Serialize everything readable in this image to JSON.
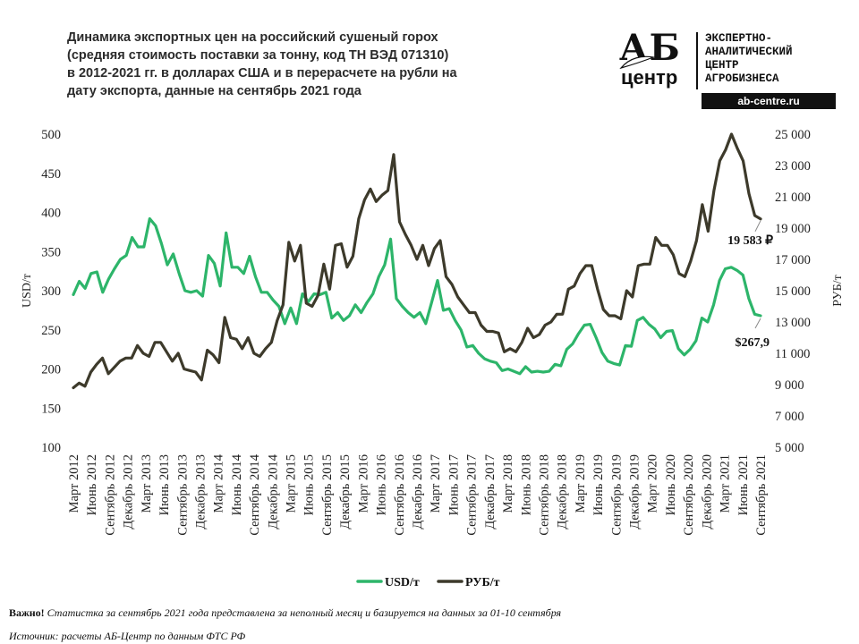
{
  "title_lines": [
    "Динамика экспортных цен на российский сушеный горох",
    "(средняя стоимость поставки за тонну, код ТН ВЭД 071310)",
    "в 2012-2021 гг. в долларах США и в перерасчете на рубли на",
    "дату экспорта, данные на сентябрь 2021 года"
  ],
  "logo": {
    "mark_top": "АБ",
    "mark_bottom": "центр",
    "text_lines": [
      "ЭКСПЕРТНО-",
      "АНАЛИТИЧЕСКИЙ",
      "ЦЕНТР",
      "АГРОБИЗНЕСА"
    ],
    "url": "ab-centre.ru"
  },
  "note": {
    "label": "Важно!",
    "text": "Статистка за сентябрь 2021 года представлена за неполный месяц и базируется на данных за 01-10 сентября"
  },
  "source": {
    "label": "Источник:",
    "text": "расчеты АБ-Центр по данным ФТС РФ"
  },
  "chart_data": {
    "type": "line",
    "y_left_label": "USD/т",
    "y_right_label": "РУБ/т",
    "y_left_lim": [
      100,
      500
    ],
    "y_right_lim": [
      5000,
      25000
    ],
    "y_left_ticks": [
      "100",
      "150",
      "200",
      "250",
      "300",
      "350",
      "400",
      "450",
      "500"
    ],
    "y_right_ticks": [
      "5 000",
      "7 000",
      "9 000",
      "11 000",
      "13 000",
      "15 000",
      "17 000",
      "19 000",
      "21 000",
      "23 000",
      "25 000"
    ],
    "x_ticks": [
      "Март 2012",
      "Июнь 2012",
      "Сентябрь 2012",
      "Декабрь 2012",
      "Март 2013",
      "Июнь 2013",
      "Сентябрь 2013",
      "Декабрь 2013",
      "Март 2014",
      "Июнь 2014",
      "Сентябрь 2014",
      "Декабрь 2014",
      "Март 2015",
      "Июнь 2015",
      "Сентябрь 2015",
      "Декабрь 2015",
      "Март 2016",
      "Июнь 2016",
      "Сентябрь 2016",
      "Декабрь 2016",
      "Март 2017",
      "Июнь 2017",
      "Сентябрь 2017",
      "Декабрь 2017",
      "Март 2018",
      "Июнь 2018",
      "Сентябрь 2018",
      "Декабрь 2018",
      "Март 2019",
      "Июнь 2019",
      "Сентябрь 2019",
      "Декабрь 2019",
      "Март 2020",
      "Июнь 2020",
      "Сентябрь 2020",
      "Декабрь 2020",
      "Март 2021",
      "Июнь 2021",
      "Сентябрь 2021"
    ],
    "series": [
      {
        "name": "USD/т",
        "axis": "left",
        "color": "#2db56a",
        "values": [
          295,
          312,
          303,
          322,
          324,
          298,
          315,
          328,
          340,
          345,
          368,
          356,
          356,
          392,
          383,
          360,
          333,
          347,
          322,
          300,
          298,
          300,
          293,
          345,
          335,
          306,
          374,
          330,
          330,
          322,
          344,
          318,
          298,
          298,
          288,
          280,
          258,
          278,
          258,
          296,
          286,
          296,
          295,
          298,
          265,
          272,
          262,
          268,
          282,
          272,
          285,
          296,
          318,
          333,
          366,
          290,
          280,
          272,
          266,
          272,
          258,
          285,
          313,
          275,
          277,
          262,
          250,
          228,
          230,
          220,
          213,
          210,
          208,
          198,
          200,
          197,
          194,
          203,
          196,
          197,
          196,
          197,
          206,
          204,
          225,
          232,
          245,
          256,
          257,
          240,
          221,
          210,
          207,
          205,
          230,
          229,
          262,
          266,
          257,
          251,
          240,
          248,
          249,
          226,
          218,
          225,
          236,
          265,
          260,
          282,
          313,
          328,
          330,
          326,
          320,
          290,
          270,
          268
        ]
      },
      {
        "name": "РУБ/т",
        "axis": "right",
        "color": "#3d3a2b",
        "values": [
          8800,
          9100,
          8900,
          9800,
          10300,
          10700,
          9700,
          10100,
          10500,
          10700,
          10700,
          11500,
          11000,
          10800,
          11700,
          11700,
          11100,
          10500,
          11000,
          10000,
          9900,
          9800,
          9300,
          11200,
          10900,
          10400,
          13300,
          12000,
          11900,
          11300,
          12000,
          11000,
          10800,
          11300,
          11700,
          13100,
          14100,
          18100,
          16900,
          17900,
          14200,
          14000,
          14700,
          16700,
          15100,
          17900,
          18000,
          16500,
          17200,
          19600,
          20800,
          21500,
          20700,
          21100,
          21400,
          23700,
          19400,
          18600,
          17900,
          17000,
          17900,
          16600,
          17700,
          18200,
          15900,
          15400,
          14600,
          14100,
          13600,
          13600,
          12800,
          12400,
          12400,
          12300,
          11100,
          11300,
          11100,
          11700,
          12600,
          12000,
          12200,
          12800,
          13000,
          13500,
          13500,
          15100,
          15300,
          16100,
          16600,
          16600,
          15100,
          13800,
          13400,
          13400,
          13200,
          15000,
          14600,
          16600,
          16700,
          16700,
          18400,
          17900,
          17900,
          17300,
          16100,
          15900,
          16900,
          18200,
          20500,
          18800,
          21400,
          23300,
          24000,
          25000,
          24100,
          23300,
          21200,
          19800,
          19583
        ]
      }
    ],
    "annotations": [
      {
        "text": "19 583 ₽",
        "series": "РУБ/т"
      },
      {
        "text": "$267,9",
        "series": "USD/т"
      }
    ],
    "legend_position": "bottom",
    "grid": false
  }
}
